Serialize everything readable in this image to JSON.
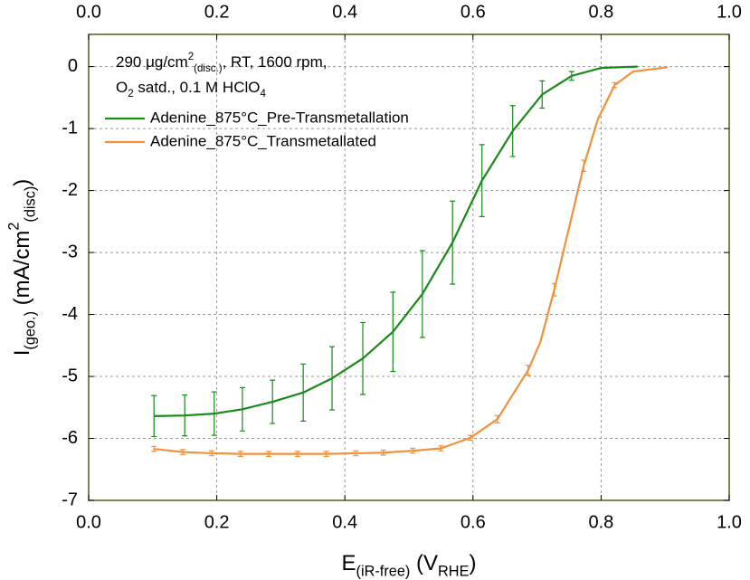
{
  "chart_data": {
    "type": "line",
    "annotation": [
      [
        {
          "text": "290 μg/cm"
        },
        {
          "text": "2",
          "pos": "sup"
        },
        {
          "text": "(disc.)",
          "pos": "sub"
        },
        {
          "text": ", RT, 1600 rpm,"
        }
      ],
      [
        {
          "text": "O"
        },
        {
          "text": "2",
          "pos": "sub"
        },
        {
          "text": " satd., 0.1 M HClO"
        },
        {
          "text": "4",
          "pos": "sub"
        }
      ]
    ],
    "xlabel": [
      {
        "text": "E"
      },
      {
        "text": "(iR-free)",
        "pos": "sub"
      },
      {
        "text": " (V"
      },
      {
        "text": "RHE",
        "pos": "sub"
      },
      {
        "text": ")"
      }
    ],
    "ylabel": [
      {
        "text": "I"
      },
      {
        "text": "(geo.)",
        "pos": "sub"
      },
      {
        "text": " (mA/cm"
      },
      {
        "text": "2",
        "pos": "sup"
      },
      {
        "text": "(disc)",
        "pos": "sub"
      },
      {
        "text": ")"
      }
    ],
    "xlim": [
      0,
      1
    ],
    "ylim": [
      -7,
      0.52
    ],
    "xticks": [
      {
        "value": 0,
        "label": "0.0"
      },
      {
        "value": 0.2,
        "label": "0.2"
      },
      {
        "value": 0.4,
        "label": "0.4"
      },
      {
        "value": 0.6,
        "label": "0.6"
      },
      {
        "value": 0.8,
        "label": "0.8"
      },
      {
        "value": 1,
        "label": "1.0"
      }
    ],
    "yticks": [
      0,
      -1,
      -2,
      -3,
      -4,
      -5,
      -6,
      -7
    ],
    "grid": true,
    "series": [
      {
        "name": "Adenine_875°C_Pre-Transmetallation",
        "color": "#1a8a1a",
        "x": [
          0.102,
          0.15,
          0.196,
          0.24,
          0.287,
          0.335,
          0.38,
          0.428,
          0.475,
          0.521,
          0.568,
          0.614,
          0.662,
          0.708,
          0.754,
          0.801,
          0.857
        ],
        "values": [
          -5.64,
          -5.63,
          -5.6,
          -5.53,
          -5.41,
          -5.26,
          -5.03,
          -4.71,
          -4.28,
          -3.67,
          -2.84,
          -1.84,
          -1.04,
          -0.45,
          -0.15,
          -0.02,
          0
        ],
        "errors": [
          0.33,
          0.33,
          0.35,
          0.35,
          0.35,
          0.46,
          0.51,
          0.58,
          0.64,
          0.7,
          0.67,
          0.58,
          0.41,
          0.22,
          0.07,
          null,
          null
        ]
      },
      {
        "name": "Adenine_875°C_Transmetallated",
        "color": "#f0913c",
        "x": [
          0.102,
          0.147,
          0.192,
          0.237,
          0.281,
          0.326,
          0.371,
          0.417,
          0.46,
          0.506,
          0.55,
          0.596,
          0.638,
          0.686,
          0.705,
          0.727,
          0.75,
          0.773,
          0.795,
          0.821,
          0.85,
          0.904
        ],
        "values": [
          -6.17,
          -6.22,
          -6.24,
          -6.25,
          -6.25,
          -6.25,
          -6.25,
          -6.24,
          -6.23,
          -6.2,
          -6.16,
          -5.99,
          -5.69,
          -4.9,
          -4.45,
          -3.6,
          -2.6,
          -1.6,
          -0.85,
          -0.3,
          -0.08,
          -0.01
        ],
        "errors": [
          0.04,
          0.04,
          0.04,
          0.04,
          0.04,
          0.04,
          0.04,
          0.04,
          0.04,
          0.04,
          0.04,
          0.04,
          0.06,
          0.08,
          null,
          0.1,
          null,
          0.09,
          null,
          0.04,
          null,
          null
        ]
      }
    ]
  }
}
